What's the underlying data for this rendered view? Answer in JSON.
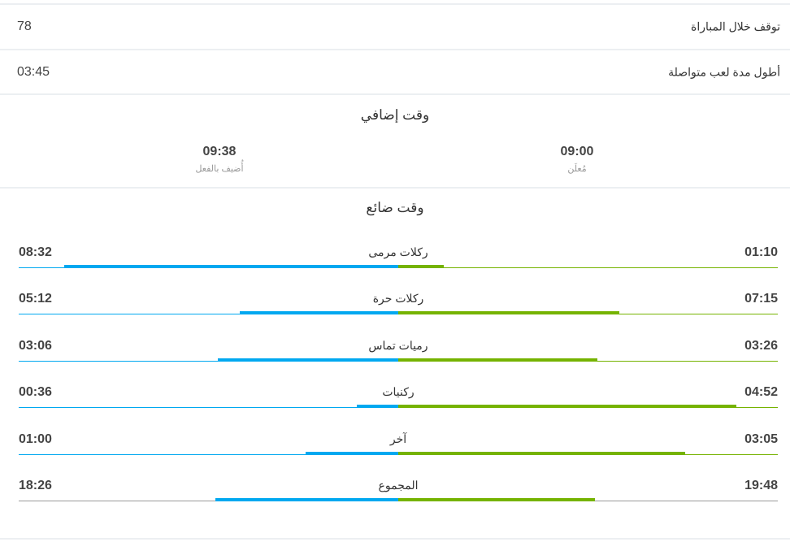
{
  "stats": [
    {
      "label": "توقف خلال المباراة",
      "value": "78"
    },
    {
      "label": "أطول مدة لعب متواصلة",
      "value": "03:45"
    }
  ],
  "extra_time": {
    "title": "وقت إضافي",
    "announced": {
      "value": "09:00",
      "label": "مُعلَن"
    },
    "added": {
      "value": "09:38",
      "label": "أُضيف بالفعل"
    }
  },
  "lost_time": {
    "title": "وقت ضائع",
    "rows": [
      {
        "label": "ركلات مرمى",
        "left": "08:32",
        "right": "01:10"
      },
      {
        "label": "ركلات حرة",
        "left": "05:12",
        "right": "07:15"
      },
      {
        "label": "رميات تماس",
        "left": "03:06",
        "right": "03:26"
      },
      {
        "label": "ركنيات",
        "left": "00:36",
        "right": "04:52"
      },
      {
        "label": "آخر",
        "left": "01:00",
        "right": "03:05"
      },
      {
        "label": "المجموع",
        "left": "18:26",
        "right": "19:48",
        "total": true
      }
    ]
  },
  "colors": {
    "left_team": "#00a8f0",
    "right_team": "#75b300",
    "divider": "#eceff2"
  }
}
